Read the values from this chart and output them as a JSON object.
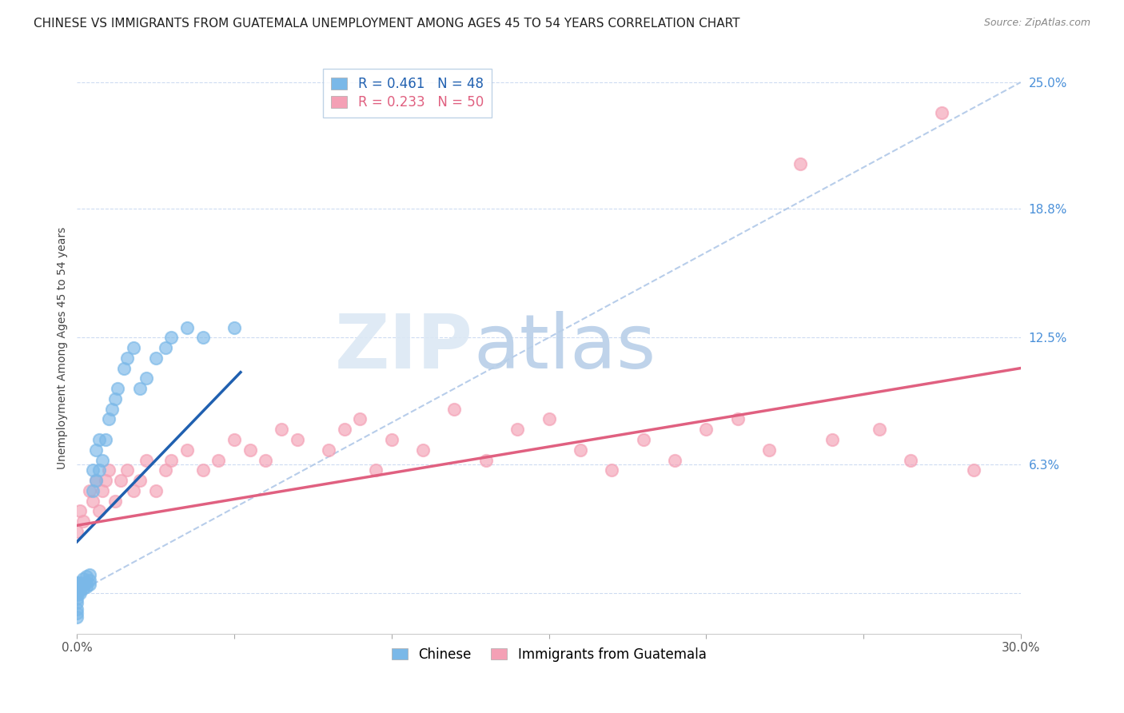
{
  "title": "CHINESE VS IMMIGRANTS FROM GUATEMALA UNEMPLOYMENT AMONG AGES 45 TO 54 YEARS CORRELATION CHART",
  "source": "Source: ZipAtlas.com",
  "ylabel": "Unemployment Among Ages 45 to 54 years",
  "xlim": [
    0.0,
    0.3
  ],
  "ylim": [
    -0.02,
    0.26
  ],
  "yticks": [
    0.0,
    0.063,
    0.125,
    0.188,
    0.25
  ],
  "ytick_labels": [
    "",
    "6.3%",
    "12.5%",
    "18.8%",
    "25.0%"
  ],
  "xticks": [
    0.0,
    0.05,
    0.1,
    0.15,
    0.2,
    0.25,
    0.3
  ],
  "xtick_labels": [
    "0.0%",
    "",
    "",
    "",
    "",
    "",
    "30.0%"
  ],
  "chinese_color": "#7ab8e8",
  "guatemala_color": "#f4a0b5",
  "chinese_line_color": "#2060b0",
  "guatemala_line_color": "#e06080",
  "dashed_line_color": "#b0c8e8",
  "R_chinese": 0.461,
  "N_chinese": 48,
  "R_guatemala": 0.233,
  "N_guatemala": 50,
  "legend_label_chinese": "Chinese",
  "legend_label_guatemala": "Immigrants from Guatemala",
  "watermark_zip": "ZIP",
  "watermark_atlas": "atlas",
  "title_fontsize": 11,
  "axis_label_fontsize": 10,
  "tick_fontsize": 11,
  "legend_fontsize": 12,
  "chinese_x": [
    0.0,
    0.0,
    0.0,
    0.0,
    0.0,
    0.0,
    0.0,
    0.0,
    0.0,
    0.0,
    0.0,
    0.0,
    0.001,
    0.001,
    0.001,
    0.001,
    0.002,
    0.002,
    0.002,
    0.003,
    0.003,
    0.003,
    0.004,
    0.004,
    0.004,
    0.005,
    0.005,
    0.006,
    0.006,
    0.007,
    0.007,
    0.008,
    0.009,
    0.01,
    0.011,
    0.012,
    0.013,
    0.015,
    0.016,
    0.018,
    0.02,
    0.022,
    0.025,
    0.028,
    0.03,
    0.035,
    0.04,
    0.05
  ],
  "chinese_y": [
    -0.005,
    -0.003,
    -0.001,
    0.0,
    0.001,
    0.002,
    0.003,
    0.004,
    0.005,
    -0.008,
    -0.01,
    -0.012,
    0.0,
    0.001,
    0.003,
    0.005,
    0.002,
    0.004,
    0.007,
    0.003,
    0.005,
    0.008,
    0.004,
    0.006,
    0.009,
    0.05,
    0.06,
    0.055,
    0.07,
    0.06,
    0.075,
    0.065,
    0.075,
    0.085,
    0.09,
    0.095,
    0.1,
    0.11,
    0.115,
    0.12,
    0.1,
    0.105,
    0.115,
    0.12,
    0.125,
    0.13,
    0.125,
    0.13
  ],
  "guatemala_x": [
    0.0,
    0.001,
    0.002,
    0.004,
    0.005,
    0.006,
    0.007,
    0.008,
    0.009,
    0.01,
    0.012,
    0.014,
    0.016,
    0.018,
    0.02,
    0.022,
    0.025,
    0.028,
    0.03,
    0.035,
    0.04,
    0.045,
    0.05,
    0.055,
    0.06,
    0.065,
    0.07,
    0.08,
    0.085,
    0.09,
    0.095,
    0.1,
    0.11,
    0.12,
    0.13,
    0.14,
    0.15,
    0.16,
    0.17,
    0.18,
    0.19,
    0.2,
    0.21,
    0.22,
    0.23,
    0.24,
    0.255,
    0.265,
    0.275,
    0.285
  ],
  "guatemala_y": [
    0.03,
    0.04,
    0.035,
    0.05,
    0.045,
    0.055,
    0.04,
    0.05,
    0.055,
    0.06,
    0.045,
    0.055,
    0.06,
    0.05,
    0.055,
    0.065,
    0.05,
    0.06,
    0.065,
    0.07,
    0.06,
    0.065,
    0.075,
    0.07,
    0.065,
    0.08,
    0.075,
    0.07,
    0.08,
    0.085,
    0.06,
    0.075,
    0.07,
    0.09,
    0.065,
    0.08,
    0.085,
    0.07,
    0.06,
    0.075,
    0.065,
    0.08,
    0.085,
    0.07,
    0.21,
    0.075,
    0.08,
    0.065,
    0.235,
    0.06
  ],
  "ch_line_x0": 0.0,
  "ch_line_x1": 0.052,
  "ch_line_y0": 0.025,
  "ch_line_y1": 0.108,
  "gt_line_x0": 0.0,
  "gt_line_x1": 0.3,
  "gt_line_y0": 0.033,
  "gt_line_y1": 0.11,
  "dash_line_x0": 0.0,
  "dash_line_x1": 0.3,
  "dash_line_y0": 0.0,
  "dash_line_y1": 0.25
}
